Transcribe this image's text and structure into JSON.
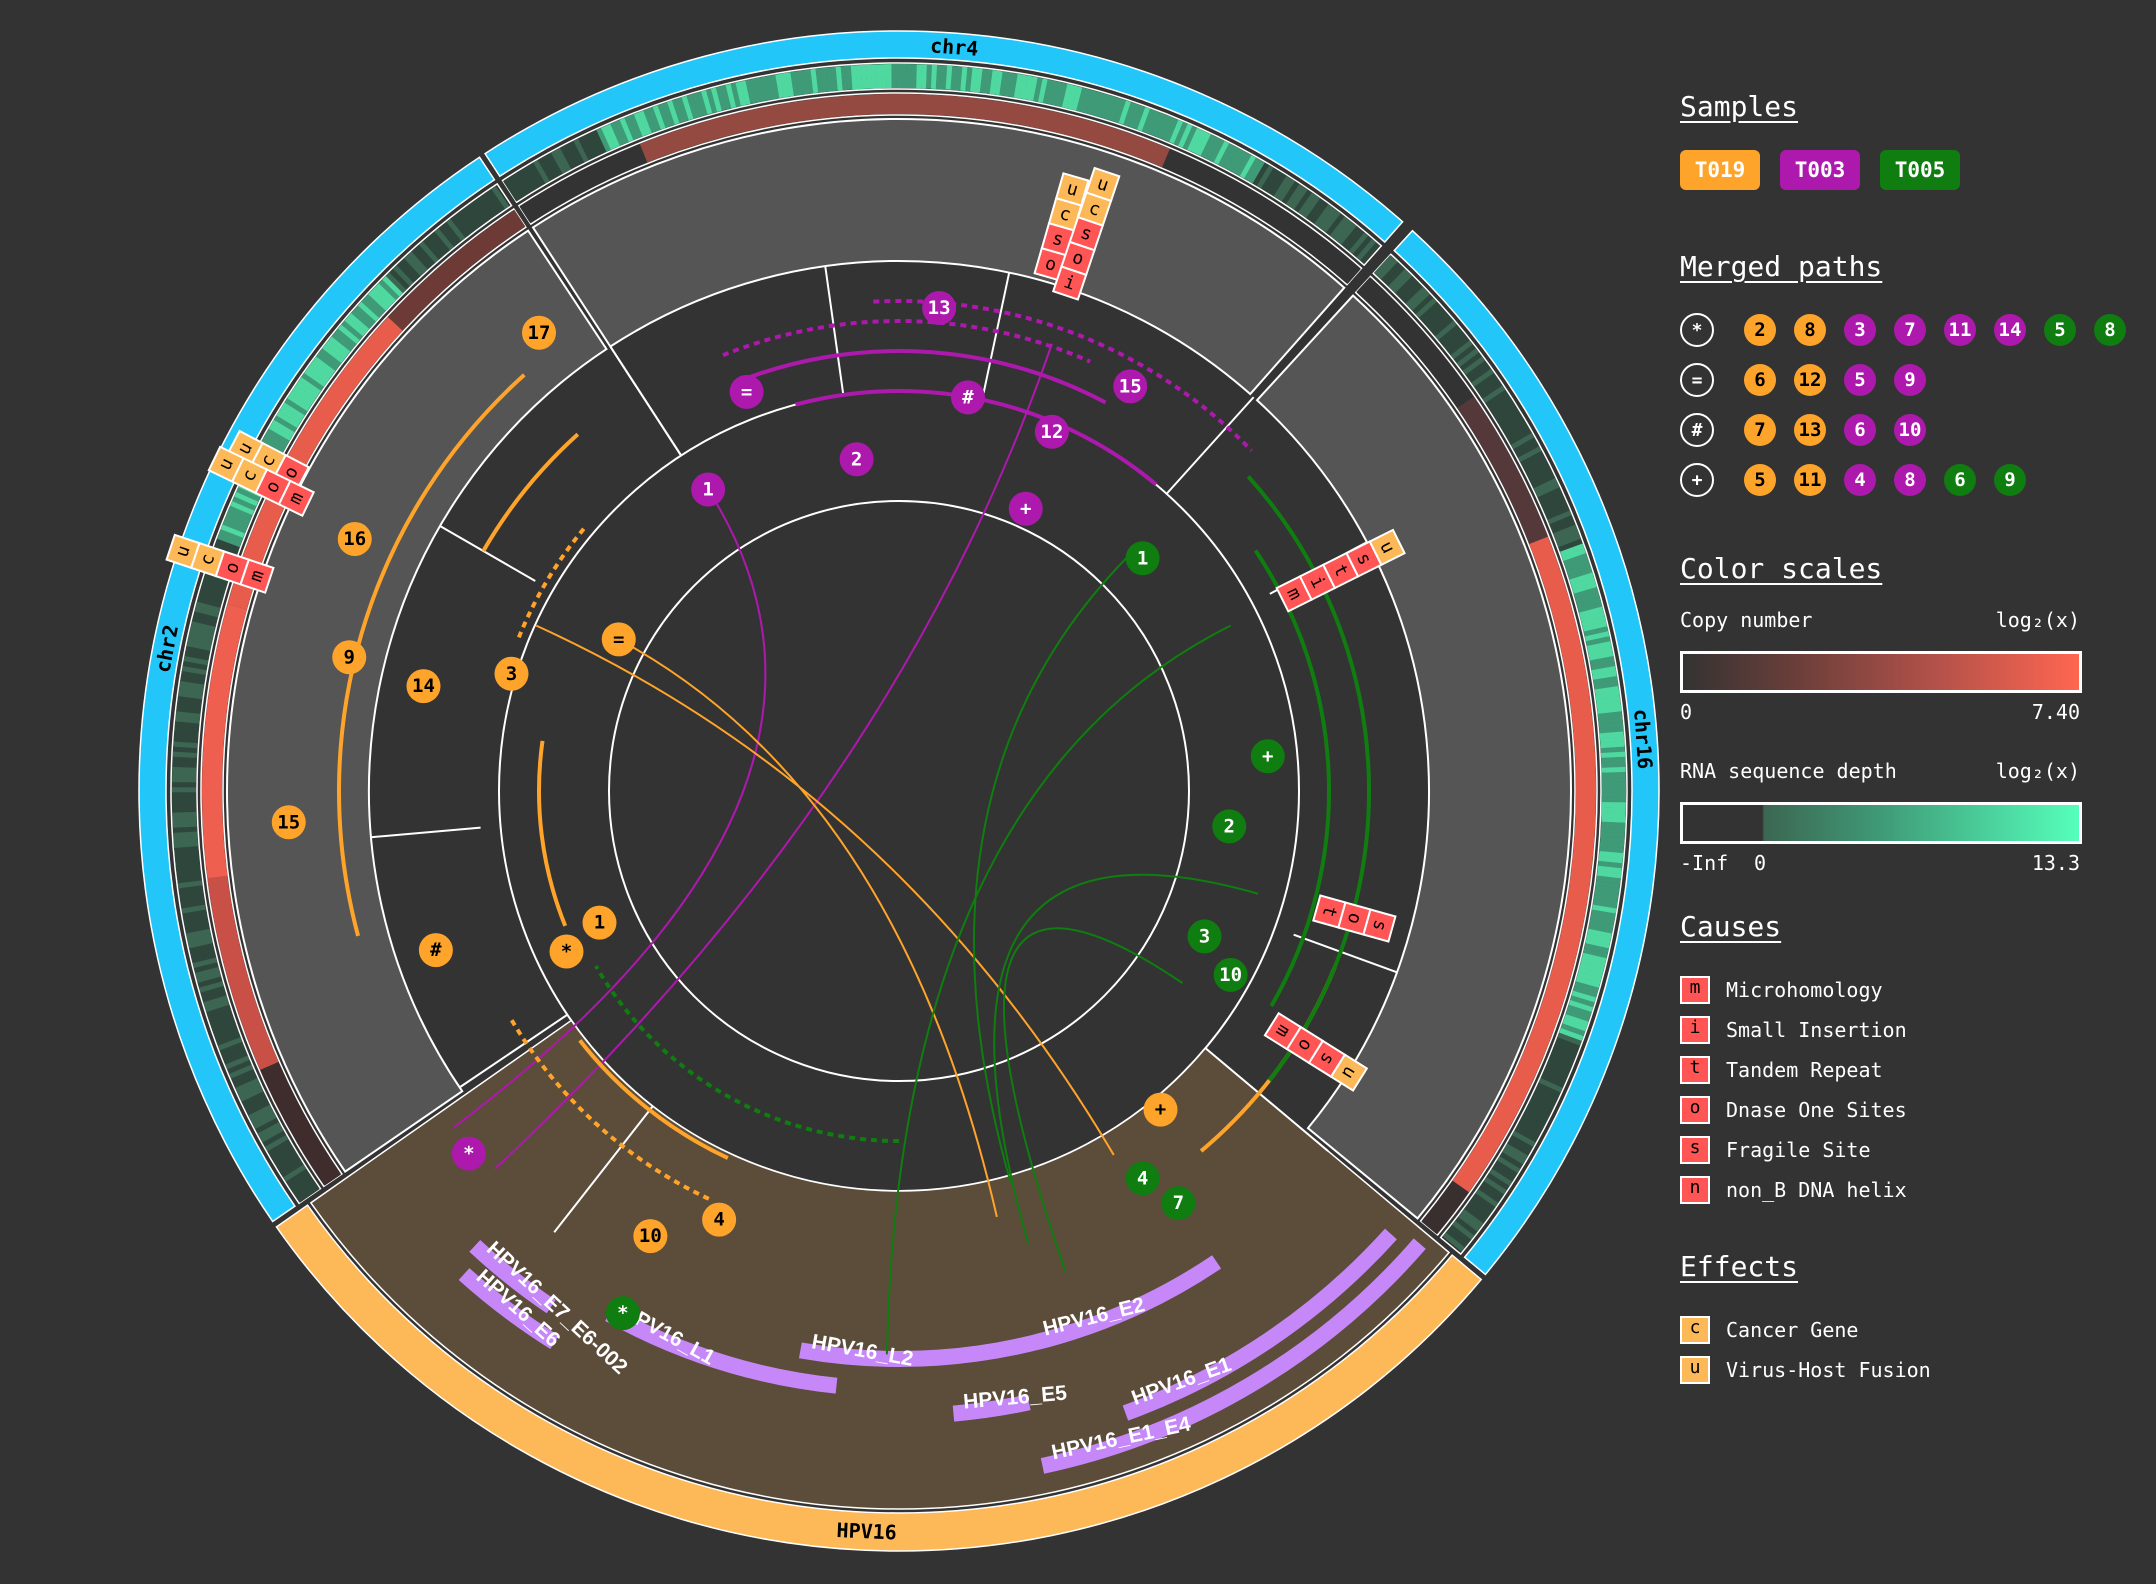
{
  "colors": {
    "background": "#333333",
    "T019": "#ffa42b",
    "T003": "#ad19ad",
    "T005": "#0f7d0f",
    "chrom_band": "#22c6f9",
    "virus_band": "#fdb857",
    "virus_bg": "#5c4c3a",
    "gene": "#c688f9",
    "grey": "#555555",
    "cause": "#ff5555",
    "effect": "#fdb857"
  },
  "chromosomes": [
    {
      "label": "chr4"
    },
    {
      "label": "chr16"
    },
    {
      "label": "HPV16"
    },
    {
      "label": "chr2"
    }
  ],
  "genes": [
    "HPV16_E6",
    "HPV16_E7_E6-002",
    "HPV16_L1",
    "HPV16_L2",
    "HPV16_E2",
    "HPV16_E5",
    "HPV16_E1",
    "HPV16_E1_E4"
  ],
  "annotations": [
    [
      "u",
      "c",
      "s",
      "o"
    ],
    [
      "u",
      "c",
      "s",
      "o",
      "i"
    ],
    [
      "u",
      "c",
      "o"
    ],
    [
      "u",
      "c",
      "o",
      "m"
    ],
    [
      "u",
      "c",
      "o",
      "m"
    ],
    [
      "u",
      "s",
      "t",
      "i",
      "m"
    ],
    [
      "s",
      "o",
      "t"
    ],
    [
      "u",
      "s",
      "o",
      "m"
    ]
  ],
  "markers": {
    "T019": [
      "17",
      "16",
      "9",
      "14",
      "3",
      "=",
      "15",
      "#",
      "*",
      "1",
      "10",
      "4",
      "+"
    ],
    "T003": [
      "13",
      "15",
      "=",
      "#",
      "12",
      "2",
      "1",
      "+",
      "*"
    ],
    "T005": [
      "1",
      "+",
      "2",
      "3",
      "10",
      "4",
      "7",
      "*"
    ]
  },
  "legend": {
    "samples_title": "Samples",
    "samples": [
      {
        "label": "T019",
        "color": "#ffa42b"
      },
      {
        "label": "T003",
        "color": "#ad19ad"
      },
      {
        "label": "T005",
        "color": "#0f7d0f"
      }
    ],
    "merged_title": "Merged paths",
    "merged": [
      {
        "symbol": "*",
        "items": [
          {
            "n": "2",
            "s": "T019"
          },
          {
            "n": "8",
            "s": "T019"
          },
          {
            "n": "3",
            "s": "T003"
          },
          {
            "n": "7",
            "s": "T003"
          },
          {
            "n": "11",
            "s": "T003"
          },
          {
            "n": "14",
            "s": "T003"
          },
          {
            "n": "5",
            "s": "T005"
          },
          {
            "n": "8",
            "s": "T005"
          }
        ]
      },
      {
        "symbol": "=",
        "items": [
          {
            "n": "6",
            "s": "T019"
          },
          {
            "n": "12",
            "s": "T019"
          },
          {
            "n": "5",
            "s": "T003"
          },
          {
            "n": "9",
            "s": "T003"
          }
        ]
      },
      {
        "symbol": "#",
        "items": [
          {
            "n": "7",
            "s": "T019"
          },
          {
            "n": "13",
            "s": "T019"
          },
          {
            "n": "6",
            "s": "T003"
          },
          {
            "n": "10",
            "s": "T003"
          }
        ]
      },
      {
        "symbol": "+",
        "items": [
          {
            "n": "5",
            "s": "T019"
          },
          {
            "n": "11",
            "s": "T019"
          },
          {
            "n": "4",
            "s": "T003"
          },
          {
            "n": "8",
            "s": "T003"
          },
          {
            "n": "6",
            "s": "T005"
          },
          {
            "n": "9",
            "s": "T005"
          }
        ]
      }
    ],
    "scales_title": "Color scales",
    "copy": {
      "label": "Copy number",
      "unit": "log₂(x)",
      "min": "0",
      "max": "7.40",
      "gradient": [
        "#333333",
        "#ff6650"
      ]
    },
    "rna": {
      "label": "RNA sequence depth",
      "unit": "log₂(x)",
      "neg": "-Inf",
      "min": "0",
      "max": "13.3",
      "gradient": [
        "#3a5a4a",
        "#55ffbb"
      ]
    },
    "causes_title": "Causes",
    "causes": [
      {
        "k": "m",
        "label": "Microhomology"
      },
      {
        "k": "i",
        "label": "Small Insertion"
      },
      {
        "k": "t",
        "label": "Tandem Repeat"
      },
      {
        "k": "o",
        "label": "Dnase One Sites"
      },
      {
        "k": "s",
        "label": "Fragile Site"
      },
      {
        "k": "n",
        "label": "non_B DNA helix"
      }
    ],
    "effects_title": "Effects",
    "effects": [
      {
        "k": "c",
        "label": "Cancer Gene"
      },
      {
        "k": "u",
        "label": "Virus-Host Fusion"
      }
    ]
  }
}
